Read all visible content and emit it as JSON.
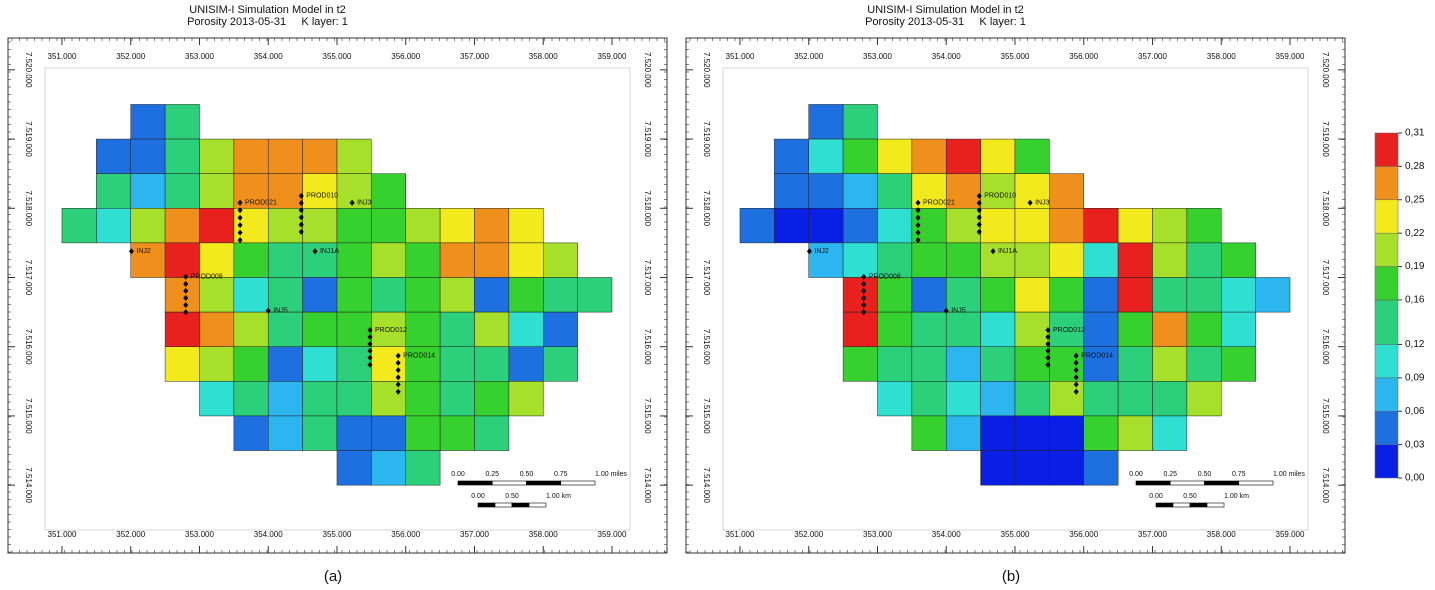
{
  "chart_data": [
    {
      "type": "heatmap",
      "title": "UNISIM-I Simulation Model in t2",
      "subtitle": "Porosity 2013-05-31     K layer: 1",
      "caption": "(a)",
      "xlim": [
        350215,
        359800
      ],
      "ylim": [
        7513020,
        7520460
      ],
      "xticks": [
        {
          "value": 351000,
          "label": "351.000"
        },
        {
          "value": 352000,
          "label": "352.000"
        },
        {
          "value": 353000,
          "label": "353.000"
        },
        {
          "value": 354000,
          "label": "354.000"
        },
        {
          "value": 355000,
          "label": "355.000"
        },
        {
          "value": 356000,
          "label": "356.000"
        },
        {
          "value": 357000,
          "label": "357.000"
        },
        {
          "value": 358000,
          "label": "358.000"
        },
        {
          "value": 359000,
          "label": "359.000"
        }
      ],
      "yticks": [
        {
          "value": 7514000,
          "label": "7.514.000"
        },
        {
          "value": 7515000,
          "label": "7.515.000"
        },
        {
          "value": 7516000,
          "label": "7.516.000"
        },
        {
          "value": 7517000,
          "label": "7.517.000"
        },
        {
          "value": 7518000,
          "label": "7.518.000"
        },
        {
          "value": 7519000,
          "label": "7.519.000"
        },
        {
          "value": 7520000,
          "label": "7.520.000"
        }
      ],
      "x_edges": [
        351000,
        351500,
        352000,
        352500,
        353000,
        353500,
        354000,
        354500,
        355000,
        355500,
        356000,
        356500,
        357000,
        357500,
        358000,
        358500,
        359000
      ],
      "y_edges": [
        7519500,
        7519000,
        7518500,
        7518000,
        7517500,
        7517000,
        7516500,
        7516000,
        7515500,
        7515000,
        7514500,
        7514000
      ],
      "values": [
        [
          null,
          null,
          0.05,
          0.12,
          null,
          null,
          null,
          null,
          null,
          null,
          null,
          null,
          null,
          null,
          null,
          null
        ],
        [
          null,
          0.04,
          0.05,
          0.15,
          0.2,
          0.27,
          0.26,
          0.25,
          0.2,
          null,
          null,
          null,
          null,
          null,
          null,
          null
        ],
        [
          null,
          0.12,
          0.06,
          0.14,
          0.2,
          0.25,
          0.27,
          0.24,
          0.2,
          0.18,
          null,
          null,
          null,
          null,
          null,
          null
        ],
        [
          0.14,
          0.1,
          0.2,
          0.27,
          0.28,
          0.24,
          0.2,
          0.19,
          0.16,
          0.17,
          0.2,
          0.22,
          0.25,
          0.24,
          null,
          null
        ],
        [
          null,
          null,
          0.26,
          0.29,
          0.22,
          0.16,
          0.15,
          0.14,
          0.18,
          0.2,
          0.17,
          0.26,
          0.27,
          0.24,
          0.2,
          null
        ],
        [
          null,
          null,
          null,
          0.25,
          0.2,
          0.1,
          0.14,
          0.05,
          0.16,
          0.15,
          0.18,
          0.2,
          0.05,
          0.18,
          0.12,
          0.15
        ],
        [
          null,
          null,
          null,
          0.3,
          0.26,
          0.2,
          0.12,
          0.16,
          0.18,
          0.2,
          0.16,
          0.15,
          0.2,
          0.1,
          0.04,
          null
        ],
        [
          null,
          null,
          null,
          0.24,
          0.2,
          0.16,
          0.05,
          0.1,
          0.15,
          0.22,
          0.18,
          0.14,
          0.12,
          0.05,
          0.15,
          null
        ],
        [
          null,
          null,
          null,
          null,
          0.1,
          0.12,
          0.08,
          0.15,
          0.12,
          0.2,
          0.16,
          0.14,
          0.16,
          0.2,
          null,
          null
        ],
        [
          null,
          null,
          null,
          null,
          null,
          0.05,
          0.06,
          0.12,
          0.04,
          0.05,
          0.18,
          0.16,
          0.15,
          null,
          null,
          null
        ],
        [
          null,
          null,
          null,
          null,
          null,
          null,
          null,
          null,
          0.05,
          0.06,
          0.14,
          null,
          null,
          null,
          null,
          null
        ]
      ],
      "wells": [
        {
          "name": "PROD021",
          "x": 353590,
          "y": 7518080,
          "y_end": 7517540
        },
        {
          "name": "PROD010",
          "x": 354480,
          "y": 7518180,
          "y_end": 7517660
        },
        {
          "name": "INJ3",
          "x": 355220,
          "y": 7518080
        },
        {
          "name": "INJ2",
          "x": 352010,
          "y": 7517380
        },
        {
          "name": "INJ1A",
          "x": 354680,
          "y": 7517380
        },
        {
          "name": "PROD008",
          "x": 352800,
          "y": 7517010,
          "y_end": 7516500
        },
        {
          "name": "INJ5",
          "x": 354000,
          "y": 7516520
        },
        {
          "name": "PROD012",
          "x": 355480,
          "y": 7516240,
          "y_end": 7515740
        },
        {
          "name": "PROD014",
          "x": 355890,
          "y": 7515870,
          "y_end": 7515350
        }
      ],
      "scale_miles": [
        "0.00",
        "0.25",
        "0.50",
        "0.75",
        "1.00 miles"
      ],
      "scale_km": [
        "0.00",
        "0.50",
        "1.00 km"
      ]
    },
    {
      "type": "heatmap",
      "title": "UNISIM-I Simulation Model in t2",
      "subtitle": "Porosity 2013-05-31     K layer: 1",
      "caption": "(b)",
      "xlim": [
        350215,
        359800
      ],
      "ylim": [
        7513020,
        7520460
      ],
      "xticks": [
        {
          "value": 351000,
          "label": "351.000"
        },
        {
          "value": 352000,
          "label": "352.000"
        },
        {
          "value": 353000,
          "label": "353.000"
        },
        {
          "value": 354000,
          "label": "354.000"
        },
        {
          "value": 355000,
          "label": "355.000"
        },
        {
          "value": 356000,
          "label": "356.000"
        },
        {
          "value": 357000,
          "label": "357.000"
        },
        {
          "value": 358000,
          "label": "358.000"
        },
        {
          "value": 359000,
          "label": "359.000"
        }
      ],
      "yticks": [
        {
          "value": 7514000,
          "label": "7.514.000"
        },
        {
          "value": 7515000,
          "label": "7.515.000"
        },
        {
          "value": 7516000,
          "label": "7.516.000"
        },
        {
          "value": 7517000,
          "label": "7.517.000"
        },
        {
          "value": 7518000,
          "label": "7.518.000"
        },
        {
          "value": 7519000,
          "label": "7.519.000"
        },
        {
          "value": 7520000,
          "label": "7.520.000"
        }
      ],
      "x_edges": [
        351000,
        351500,
        352000,
        352500,
        353000,
        353500,
        354000,
        354500,
        355000,
        355500,
        356000,
        356500,
        357000,
        357500,
        358000,
        358500,
        359000
      ],
      "y_edges": [
        7519500,
        7519000,
        7518500,
        7518000,
        7517500,
        7517000,
        7516500,
        7516000,
        7515500,
        7515000,
        7514500,
        7514000
      ],
      "values": [
        [
          null,
          null,
          0.05,
          0.12,
          null,
          null,
          null,
          null,
          null,
          null,
          null,
          null,
          null,
          null,
          null,
          null
        ],
        [
          null,
          0.04,
          0.1,
          0.18,
          0.22,
          0.26,
          0.29,
          0.22,
          0.18,
          null,
          null,
          null,
          null,
          null,
          null,
          null
        ],
        [
          null,
          0.03,
          0.04,
          0.08,
          0.15,
          0.24,
          0.26,
          0.2,
          0.22,
          0.25,
          null,
          null,
          null,
          null,
          null,
          null
        ],
        [
          0.03,
          0.02,
          0.02,
          0.05,
          0.1,
          0.16,
          0.2,
          0.22,
          0.24,
          0.27,
          0.3,
          0.24,
          0.2,
          0.18,
          null,
          null
        ],
        [
          null,
          null,
          0.06,
          0.1,
          0.14,
          0.18,
          0.16,
          0.19,
          0.2,
          0.22,
          0.1,
          0.28,
          0.2,
          0.15,
          0.18,
          null
        ],
        [
          null,
          null,
          null,
          0.28,
          0.16,
          0.04,
          0.12,
          0.18,
          0.24,
          0.16,
          0.05,
          0.29,
          0.15,
          0.14,
          0.1,
          0.08
        ],
        [
          null,
          null,
          null,
          0.3,
          0.16,
          0.12,
          0.15,
          0.1,
          0.2,
          0.12,
          0.04,
          0.18,
          0.25,
          0.16,
          0.1,
          null
        ],
        [
          null,
          null,
          null,
          0.16,
          0.14,
          0.12,
          0.08,
          0.15,
          0.18,
          0.16,
          0.05,
          0.14,
          0.2,
          0.12,
          0.16,
          null
        ],
        [
          null,
          null,
          null,
          null,
          0.1,
          0.14,
          0.1,
          0.06,
          0.12,
          0.2,
          0.12,
          0.15,
          0.14,
          0.2,
          null,
          null
        ],
        [
          null,
          null,
          null,
          null,
          null,
          0.16,
          0.08,
          0.02,
          0.01,
          0.02,
          0.18,
          0.2,
          0.1,
          null,
          null,
          null
        ],
        [
          null,
          null,
          null,
          null,
          null,
          null,
          null,
          0.01,
          0.01,
          0.01,
          0.03,
          null,
          null,
          null,
          null,
          null
        ]
      ],
      "wells": [
        {
          "name": "PROD021",
          "x": 353590,
          "y": 7518080,
          "y_end": 7517540
        },
        {
          "name": "PROD010",
          "x": 354480,
          "y": 7518180,
          "y_end": 7517660
        },
        {
          "name": "INJ3",
          "x": 355220,
          "y": 7518080
        },
        {
          "name": "INJ2",
          "x": 352010,
          "y": 7517380
        },
        {
          "name": "INJ1A",
          "x": 354680,
          "y": 7517380
        },
        {
          "name": "PROD008",
          "x": 352800,
          "y": 7517010,
          "y_end": 7516500
        },
        {
          "name": "INJ5",
          "x": 354000,
          "y": 7516520
        },
        {
          "name": "PROD012",
          "x": 355480,
          "y": 7516240,
          "y_end": 7515740
        },
        {
          "name": "PROD014",
          "x": 355890,
          "y": 7515870,
          "y_end": 7515350
        }
      ],
      "scale_miles": [
        "0.00",
        "0.25",
        "0.50",
        "0.75",
        "1.00 miles"
      ],
      "scale_km": [
        "0.00",
        "0.50",
        "1.00 km"
      ]
    }
  ],
  "colorbar": {
    "ticks": [
      {
        "value": 0,
        "label": "0,00"
      },
      {
        "value": 0.03,
        "label": "0,03"
      },
      {
        "value": 0.06,
        "label": "0,06"
      },
      {
        "value": 0.09,
        "label": "0,09"
      },
      {
        "value": 0.12,
        "label": "0,12"
      },
      {
        "value": 0.16,
        "label": "0,16"
      },
      {
        "value": 0.19,
        "label": "0,19"
      },
      {
        "value": 0.22,
        "label": "0,22"
      },
      {
        "value": 0.25,
        "label": "0,25"
      },
      {
        "value": 0.28,
        "label": "0,28"
      },
      {
        "value": 0.31,
        "label": "0,31"
      }
    ],
    "colors": [
      "#0a1fe6",
      "#1e6fe0",
      "#2cb6f0",
      "#2fe0d2",
      "#2ccf7a",
      "#36d12e",
      "#a6e02a",
      "#f2ea1c",
      "#f0901c",
      "#e8201e"
    ]
  }
}
